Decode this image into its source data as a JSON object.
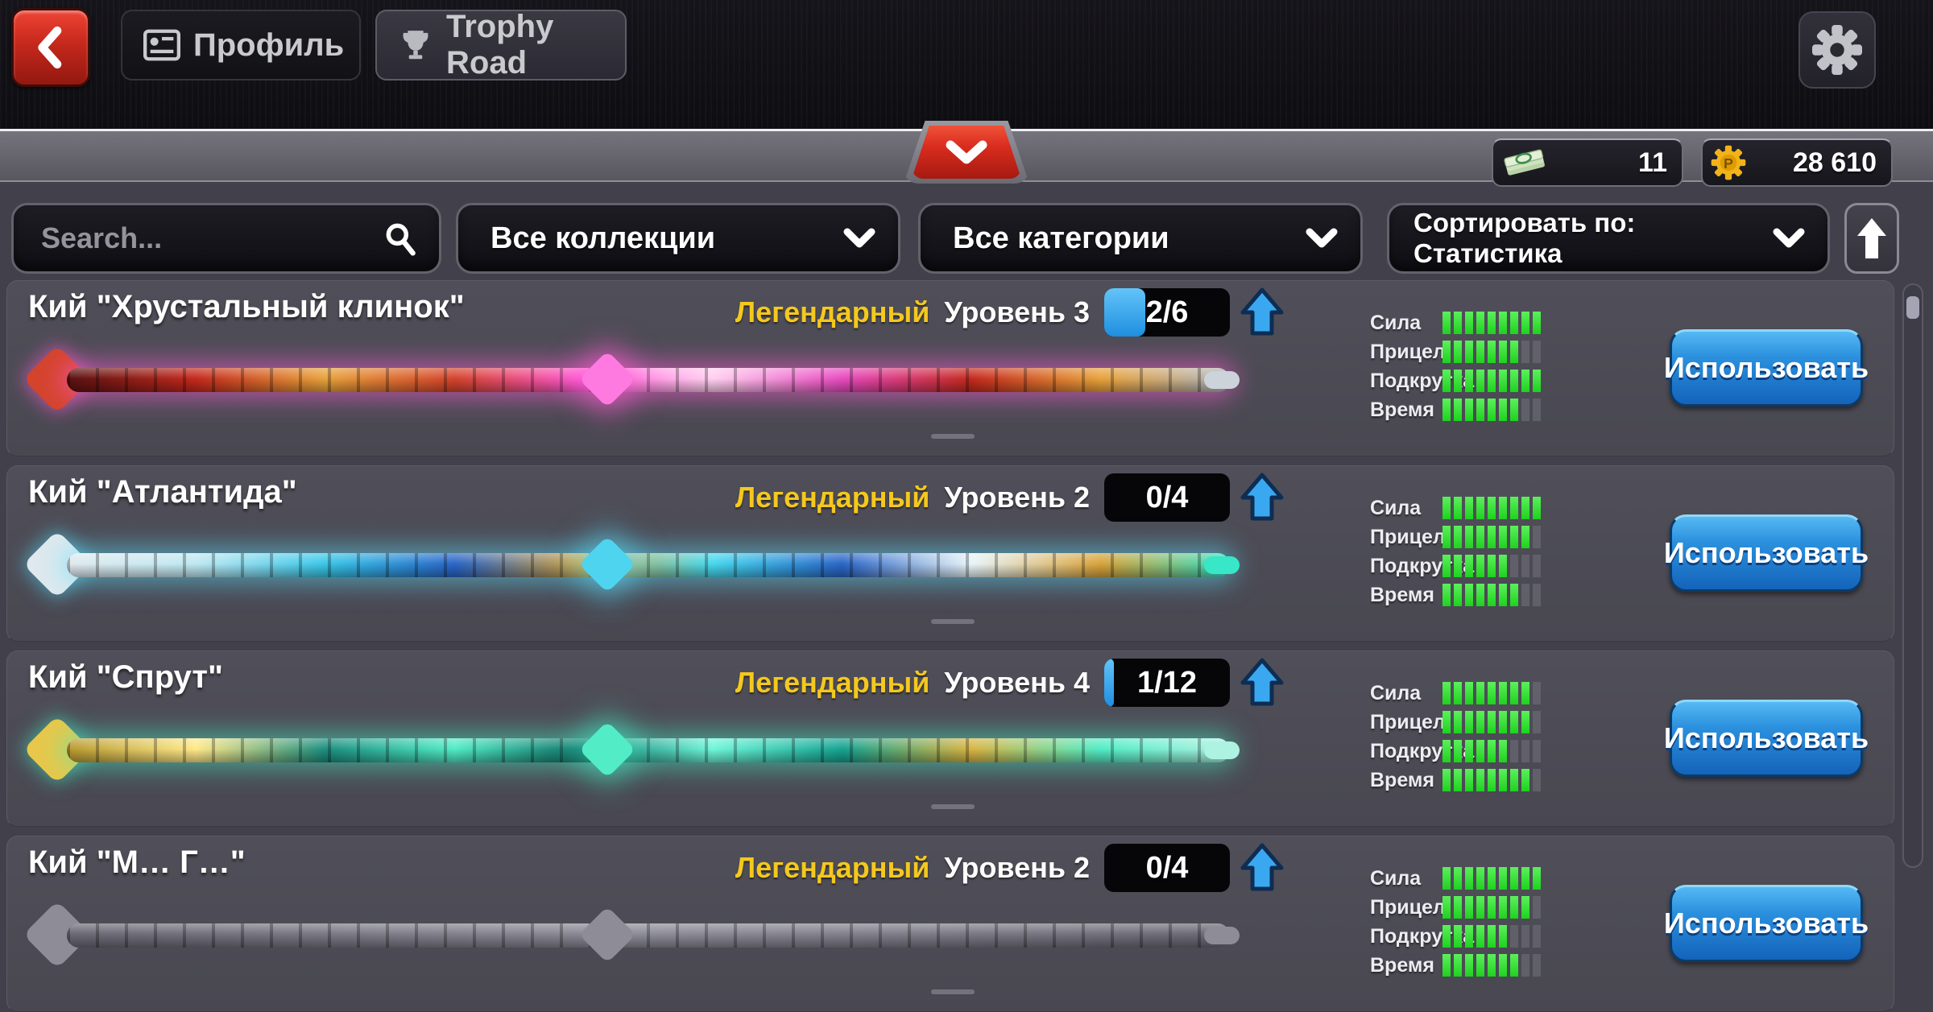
{
  "header": {
    "tabs": [
      {
        "label": "Профиль",
        "icon": "id-card-icon"
      },
      {
        "label": "Trophy Road",
        "icon": "trophy-icon"
      }
    ],
    "back_icon": "chevron-left",
    "settings_icon": "gear"
  },
  "subheader": {
    "collapse_icon": "chevron-down",
    "currencies": [
      {
        "name": "cash",
        "icon": "money-stack",
        "value": "11"
      },
      {
        "name": "coins",
        "icon": "pool-coin",
        "value": "28 610"
      }
    ]
  },
  "filters": {
    "search_placeholder": "Search...",
    "collections_label": "Все коллекции",
    "categories_label": "Все категории",
    "sort_label": "Сортировать по: Статистика",
    "scroll_top_icon": "arrow-up"
  },
  "use_button_label": "Использовать",
  "stat_names": [
    "Сила",
    "Прицел",
    "Подкрутка",
    "Время"
  ],
  "colors": {
    "rarity_legendary": "#f4c81e",
    "progress_blue": "#2e9fe8",
    "stat_green": "#2ce32c",
    "button_blue": "#2b90dd",
    "back_red": "#c5281c"
  },
  "cues": [
    {
      "name": "Кий \"Хрустальный клинок\"",
      "rarity": "Легендарный",
      "level": "Уровень 3",
      "progress": "2/6",
      "progress_pct": 33,
      "stats": [
        {
          "label": "Сила",
          "value": 9,
          "max": 9
        },
        {
          "label": "Прицел",
          "value": 7,
          "max": 9
        },
        {
          "label": "Подкрутка",
          "value": 9,
          "max": 9
        },
        {
          "label": "Время",
          "value": 7,
          "max": 9
        }
      ],
      "art": {
        "shaft": [
          "#5a1212",
          "#c42a1e",
          "#e8a23c",
          "#d4442c",
          "#ff5bd6",
          "#ffd0f0",
          "#e84bc0",
          "#c42a1e",
          "#e8a23c",
          "#b0b6c0"
        ],
        "head": "#d4442c",
        "mid": "#ff7ae0",
        "tip": "#cdd3da",
        "glow": "rgba(255,92,214,0.55)"
      }
    },
    {
      "name": "Кий \"Атлантида\"",
      "rarity": "Легендарный",
      "level": "Уровень 2",
      "progress": "0/4",
      "progress_pct": 0,
      "stats": [
        {
          "label": "Сила",
          "value": 9,
          "max": 9
        },
        {
          "label": "Прицел",
          "value": 8,
          "max": 9
        },
        {
          "label": "Подкрутка",
          "value": 6,
          "max": 9
        },
        {
          "label": "Время",
          "value": 7,
          "max": 9
        }
      ],
      "art": {
        "shaft": [
          "#dfe9ee",
          "#bfe8f2",
          "#39c7e8",
          "#2a66c8",
          "#d9a33a",
          "#46d8ee",
          "#2a66c8",
          "#e8f4f8",
          "#d9a33a",
          "#35e0c4"
        ],
        "head": "#dfe9ee",
        "mid": "#4fd4f0",
        "tip": "#38e6c8",
        "glow": "rgba(90,225,255,0.5)"
      }
    },
    {
      "name": "Кий \"Спрут\"",
      "rarity": "Легендарный",
      "level": "Уровень 4",
      "progress": "1/12",
      "progress_pct": 8,
      "stats": [
        {
          "label": "Сила",
          "value": 8,
          "max": 9
        },
        {
          "label": "Прицел",
          "value": 8,
          "max": 9
        },
        {
          "label": "Подкрутка",
          "value": 6,
          "max": 9
        },
        {
          "label": "Время",
          "value": 8,
          "max": 9
        }
      ],
      "art": {
        "shaft": [
          "#b89a30",
          "#ffe98a",
          "#1d8f80",
          "#52ecc6",
          "#0f6f66",
          "#6ff7da",
          "#16a392",
          "#d9b544",
          "#52ecc6",
          "#aef2e2"
        ],
        "head": "#e8c84a",
        "mid": "#52ecc6",
        "tip": "#aef2e2",
        "glow": "rgba(70,240,200,0.5)"
      }
    },
    {
      "name": "Кий \"М… Г…\"",
      "rarity": "Легендарный",
      "level": "Уровень 2",
      "progress": "0/4",
      "progress_pct": 0,
      "partial": true,
      "stats": [
        {
          "label": "Сила",
          "value": 9,
          "max": 9
        },
        {
          "label": "Прицел",
          "value": 8,
          "max": 9
        },
        {
          "label": "Подкрутка",
          "value": 6,
          "max": 9
        },
        {
          "label": "Время",
          "value": 7,
          "max": 9
        }
      ],
      "art": {
        "shaft": [
          "#6a6974",
          "#8d8c97",
          "#6a6974"
        ],
        "head": "#8d8c97",
        "mid": "#8d8c97",
        "tip": "#8d8c97",
        "glow": "rgba(0,0,0,0)"
      }
    }
  ]
}
